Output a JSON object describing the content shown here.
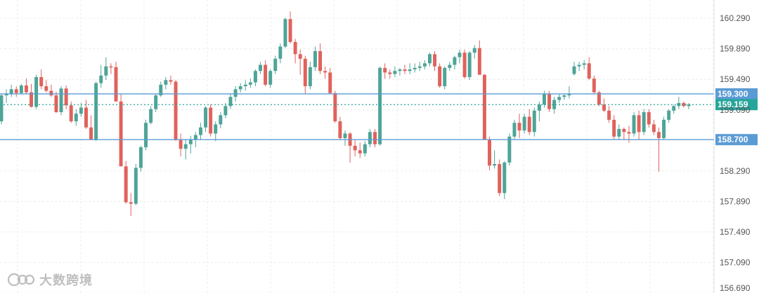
{
  "chart_data": {
    "type": "candlestick",
    "y_axis": {
      "position": "right",
      "ticks": [
        "160.290",
        "159.890",
        "159.490",
        "159.090",
        "158.290",
        "157.890",
        "157.490",
        "157.090",
        "156.690"
      ],
      "ylim": [
        156.69,
        160.53
      ]
    },
    "grid": true,
    "colors": {
      "up": "#4ea497",
      "down": "#e0625c",
      "level_line": "#5b9bd5",
      "current_line": "#26a69a"
    },
    "levels": [
      {
        "label": "159.300",
        "value": 159.3
      },
      {
        "label": "158.700",
        "value": 158.7
      }
    ],
    "current_price": {
      "label": "159.159",
      "value": 159.159
    },
    "candles": [
      [
        158.94,
        159.3,
        158.9,
        159.28
      ],
      [
        159.28,
        159.36,
        159.18,
        159.3
      ],
      [
        159.3,
        159.42,
        159.26,
        159.36
      ],
      [
        159.36,
        159.4,
        159.26,
        159.31
      ],
      [
        159.31,
        159.43,
        159.3,
        159.41
      ],
      [
        159.41,
        159.5,
        159.3,
        159.32
      ],
      [
        159.32,
        159.43,
        159.12,
        159.13
      ],
      [
        159.13,
        159.55,
        159.1,
        159.52
      ],
      [
        159.52,
        159.62,
        159.36,
        159.4
      ],
      [
        159.4,
        159.48,
        159.32,
        159.34
      ],
      [
        159.34,
        159.42,
        159.26,
        159.28
      ],
      [
        159.28,
        159.33,
        159.05,
        159.06
      ],
      [
        159.06,
        159.4,
        159.02,
        159.37
      ],
      [
        159.37,
        159.41,
        159.1,
        159.15
      ],
      [
        159.15,
        159.2,
        158.92,
        158.94
      ],
      [
        158.94,
        159.1,
        158.88,
        159.04
      ],
      [
        159.04,
        159.18,
        159.0,
        159.12
      ],
      [
        159.12,
        159.22,
        158.84,
        158.86
      ],
      [
        158.86,
        159.02,
        158.72,
        158.7
      ],
      [
        158.7,
        159.46,
        158.68,
        159.44
      ],
      [
        159.44,
        159.68,
        159.38,
        159.54
      ],
      [
        159.54,
        159.78,
        159.48,
        159.66
      ],
      [
        159.66,
        159.7,
        159.56,
        159.65
      ],
      [
        159.65,
        159.72,
        159.2,
        159.2
      ],
      [
        159.2,
        159.3,
        158.38,
        158.35
      ],
      [
        158.35,
        158.42,
        157.86,
        157.88
      ],
      [
        157.88,
        158.0,
        157.7,
        157.86
      ],
      [
        157.86,
        158.38,
        157.84,
        158.33
      ],
      [
        158.33,
        158.62,
        158.28,
        158.6
      ],
      [
        158.6,
        158.96,
        158.56,
        158.92
      ],
      [
        158.92,
        159.14,
        158.9,
        159.1
      ],
      [
        159.1,
        159.3,
        159.06,
        159.28
      ],
      [
        159.28,
        159.46,
        159.26,
        159.42
      ],
      [
        159.42,
        159.52,
        159.36,
        159.48
      ],
      [
        159.48,
        159.54,
        159.42,
        159.46
      ],
      [
        159.46,
        159.48,
        158.68,
        158.7
      ],
      [
        158.7,
        158.78,
        158.48,
        158.58
      ],
      [
        158.58,
        158.7,
        158.44,
        158.64
      ],
      [
        158.64,
        158.75,
        158.52,
        158.7
      ],
      [
        158.7,
        158.8,
        158.6,
        158.76
      ],
      [
        158.76,
        158.92,
        158.7,
        158.86
      ],
      [
        158.86,
        159.14,
        158.8,
        159.12
      ],
      [
        159.12,
        159.16,
        158.74,
        158.78
      ],
      [
        158.78,
        158.94,
        158.68,
        158.9
      ],
      [
        158.9,
        159.06,
        158.85,
        159.02
      ],
      [
        159.02,
        159.18,
        158.98,
        159.14
      ],
      [
        159.14,
        159.3,
        159.1,
        159.26
      ],
      [
        159.26,
        159.4,
        159.2,
        159.36
      ],
      [
        159.36,
        159.44,
        159.32,
        159.4
      ],
      [
        159.4,
        159.48,
        159.34,
        159.42
      ],
      [
        159.42,
        159.5,
        159.38,
        159.45
      ],
      [
        159.45,
        159.62,
        159.4,
        159.6
      ],
      [
        159.6,
        159.72,
        159.56,
        159.68
      ],
      [
        159.68,
        159.74,
        159.4,
        159.42
      ],
      [
        159.42,
        159.62,
        159.38,
        159.6
      ],
      [
        159.6,
        159.8,
        159.56,
        159.76
      ],
      [
        159.76,
        159.96,
        159.7,
        159.92
      ],
      [
        159.92,
        160.3,
        159.9,
        160.28
      ],
      [
        160.28,
        160.38,
        159.96,
        159.98
      ],
      [
        159.98,
        160.02,
        159.7,
        159.82
      ],
      [
        159.82,
        159.88,
        159.55,
        159.76
      ],
      [
        159.76,
        159.8,
        159.3,
        159.4
      ],
      [
        159.4,
        159.72,
        159.36,
        159.65
      ],
      [
        159.65,
        159.92,
        159.6,
        159.86
      ],
      [
        159.86,
        159.96,
        159.56,
        159.6
      ],
      [
        159.6,
        159.66,
        159.5,
        159.58
      ],
      [
        159.58,
        159.64,
        159.3,
        159.31
      ],
      [
        159.31,
        159.34,
        158.92,
        158.94
      ],
      [
        158.94,
        159.0,
        158.7,
        158.72
      ],
      [
        158.72,
        158.82,
        158.62,
        158.78
      ],
      [
        158.78,
        158.8,
        158.4,
        158.62
      ],
      [
        158.62,
        158.7,
        158.48,
        158.56
      ],
      [
        158.56,
        158.66,
        158.46,
        158.52
      ],
      [
        158.52,
        158.68,
        158.48,
        158.64
      ],
      [
        158.64,
        158.84,
        158.6,
        158.8
      ],
      [
        158.8,
        158.84,
        158.6,
        158.64
      ],
      [
        158.64,
        159.66,
        158.62,
        159.64
      ],
      [
        159.64,
        159.7,
        159.5,
        159.58
      ],
      [
        159.58,
        159.62,
        159.5,
        159.56
      ],
      [
        159.56,
        159.66,
        159.52,
        159.6
      ],
      [
        159.6,
        159.64,
        159.54,
        159.62
      ],
      [
        159.62,
        159.68,
        159.56,
        159.6
      ],
      [
        159.6,
        159.7,
        159.56,
        159.62
      ],
      [
        159.62,
        159.7,
        159.58,
        159.64
      ],
      [
        159.64,
        159.72,
        159.6,
        159.66
      ],
      [
        159.66,
        159.74,
        159.62,
        159.7
      ],
      [
        159.7,
        159.84,
        159.66,
        159.82
      ],
      [
        159.82,
        159.86,
        159.6,
        159.66
      ],
      [
        159.66,
        159.7,
        159.38,
        159.4
      ],
      [
        159.4,
        159.66,
        159.36,
        159.64
      ],
      [
        159.64,
        159.72,
        159.6,
        159.68
      ],
      [
        159.68,
        159.8,
        159.62,
        159.78
      ],
      [
        159.78,
        159.88,
        159.7,
        159.84
      ],
      [
        159.84,
        159.88,
        159.5,
        159.52
      ],
      [
        159.52,
        159.86,
        159.48,
        159.84
      ],
      [
        159.84,
        159.94,
        159.76,
        159.9
      ],
      [
        159.9,
        160.0,
        159.56,
        159.55
      ],
      [
        159.55,
        159.56,
        158.71,
        158.7
      ],
      [
        158.7,
        158.74,
        158.3,
        158.36
      ],
      [
        158.36,
        158.56,
        158.32,
        158.38
      ],
      [
        158.38,
        158.44,
        157.96,
        158.0
      ],
      [
        158.0,
        158.42,
        157.92,
        158.4
      ],
      [
        158.4,
        158.78,
        158.36,
        158.74
      ],
      [
        158.74,
        158.96,
        158.7,
        158.92
      ],
      [
        158.92,
        159.04,
        158.72,
        158.82
      ],
      [
        158.82,
        159.04,
        158.78,
        159.0
      ],
      [
        159.0,
        159.1,
        158.76,
        158.8
      ],
      [
        158.8,
        159.12,
        158.74,
        159.08
      ],
      [
        159.08,
        159.2,
        158.94,
        159.16
      ],
      [
        159.16,
        159.34,
        159.12,
        159.3
      ],
      [
        159.3,
        159.34,
        159.06,
        159.1
      ],
      [
        159.1,
        159.26,
        159.04,
        159.22
      ],
      [
        159.22,
        159.3,
        159.18,
        159.26
      ],
      [
        159.26,
        159.3,
        159.22,
        159.28
      ],
      [
        159.28,
        159.4,
        159.24,
        159.3
      ],
      [
        159.56,
        159.72,
        159.54,
        159.66
      ],
      [
        159.66,
        159.72,
        159.6,
        159.68
      ],
      [
        159.68,
        159.74,
        159.62,
        159.7
      ],
      [
        159.7,
        159.78,
        159.48,
        159.5
      ],
      [
        159.5,
        159.54,
        159.3,
        159.32
      ],
      [
        159.32,
        159.34,
        159.14,
        159.16
      ],
      [
        159.16,
        159.24,
        159.06,
        159.08
      ],
      [
        159.08,
        159.14,
        158.92,
        158.96
      ],
      [
        158.96,
        159.02,
        158.7,
        158.74
      ],
      [
        158.74,
        158.9,
        158.7,
        158.84
      ],
      [
        158.84,
        158.86,
        158.7,
        158.8
      ],
      [
        158.8,
        158.88,
        158.66,
        158.78
      ],
      [
        158.78,
        159.06,
        158.74,
        159.02
      ],
      [
        159.02,
        159.08,
        158.7,
        158.8
      ],
      [
        158.8,
        159.1,
        158.76,
        159.06
      ],
      [
        159.06,
        159.1,
        158.86,
        158.9
      ],
      [
        158.9,
        158.96,
        158.76,
        158.8
      ],
      [
        158.8,
        158.86,
        158.28,
        158.72
      ],
      [
        158.72,
        159.0,
        158.7,
        158.96
      ],
      [
        158.96,
        159.1,
        158.92,
        159.08
      ],
      [
        159.08,
        159.16,
        159.04,
        159.14
      ],
      [
        159.14,
        159.26,
        159.1,
        159.18
      ],
      [
        159.18,
        159.2,
        159.12,
        159.14
      ],
      [
        159.14,
        159.18,
        159.1,
        159.16
      ]
    ]
  },
  "watermark": {
    "text": "大数跨境"
  }
}
